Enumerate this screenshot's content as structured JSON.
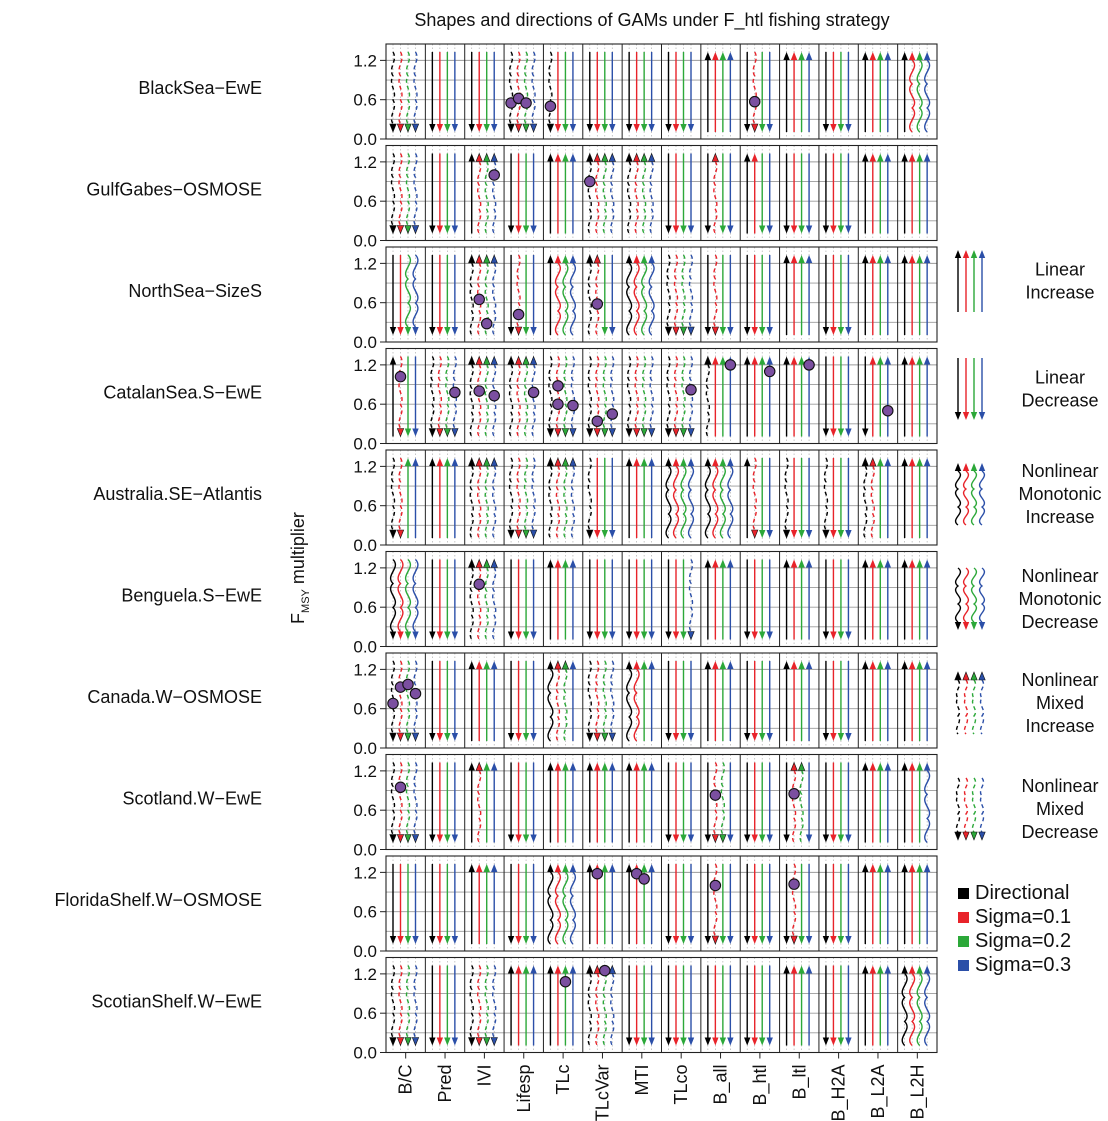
{
  "chart_data": {
    "type": "small-multiples-arrow-chart",
    "title": "Shapes and directions of GAMs under F_htl fishing strategy",
    "ylabel": {
      "main": "F",
      "sub": "MSY",
      "rest": " multiplier"
    },
    "y_ticks": [
      "1.2",
      "0.6",
      "0.0"
    ],
    "ylim": [
      0,
      1.45
    ],
    "indicators": [
      "B/C",
      "Pred",
      "IVI",
      "Lifesp",
      "TLc",
      "TLcVar",
      "MTI",
      "TLco",
      "B_all",
      "B_htl",
      "B_ltl",
      "B_H2A",
      "B_L2A",
      "B_L2H"
    ],
    "series": [
      {
        "name": "Directional",
        "color": "#000000"
      },
      {
        "name": "Sigma=0.1",
        "color": "#e8232a"
      },
      {
        "name": "Sigma=0.2",
        "color": "#2ca839"
      },
      {
        "name": "Sigma=0.3",
        "color": "#2b4fa8"
      }
    ],
    "shape_legend": [
      {
        "code": "LI",
        "lines": [
          "Linear",
          "Increase"
        ]
      },
      {
        "code": "LD",
        "lines": [
          "Linear",
          "Decrease"
        ]
      },
      {
        "code": "NMI",
        "lines": [
          "Nonlinear",
          "Monotonic",
          "Increase"
        ]
      },
      {
        "code": "NMD",
        "lines": [
          "Nonlinear",
          "Monotonic",
          "Decrease"
        ]
      },
      {
        "code": "NXI",
        "lines": [
          "Nonlinear",
          "Mixed",
          "Increase"
        ]
      },
      {
        "code": "NXD",
        "lines": [
          "Nonlinear",
          "Mixed",
          "Decrease"
        ]
      }
    ],
    "ecosystems": [
      {
        "name": "BlackSea−EwE",
        "shapes": [
          [
            "NXD",
            "NXD",
            "NXD",
            "NXD"
          ],
          [
            "LD",
            "LD",
            "LD",
            "LD"
          ],
          [
            "LD",
            "LD",
            "LD",
            "LD"
          ],
          [
            "NXD",
            "NXD",
            "NXD",
            "NXD"
          ],
          [
            "NXD",
            "LD",
            "LD",
            "LD"
          ],
          [
            "LD",
            "LD",
            "LD",
            "LD"
          ],
          [
            "LD",
            "LD",
            "LD",
            "LD"
          ],
          [
            "LD",
            "LD",
            "LD",
            "LD"
          ],
          [
            "LI",
            "LI",
            "LI",
            "LI"
          ],
          [
            "LD",
            "NXD",
            "LD",
            "LD"
          ],
          [
            "LI",
            "LI",
            "LI",
            "LI"
          ],
          [
            "LD",
            "LD",
            "LD",
            "LD"
          ],
          [
            "LI",
            "LI",
            "LI",
            "LI"
          ],
          [
            "LI",
            "NMI",
            "NMI",
            "NMI"
          ]
        ],
        "points": [
          [
            3,
            0,
            0.55
          ],
          [
            3,
            1,
            0.62
          ],
          [
            3,
            2,
            0.55
          ],
          [
            4,
            0,
            0.5
          ],
          [
            9,
            1,
            0.57
          ]
        ]
      },
      {
        "name": "GulfGabes−OSMOSE",
        "shapes": [
          [
            "NXD",
            "NXD",
            "NXD",
            "NXD"
          ],
          [
            "LD",
            "LD",
            "LD",
            "LD"
          ],
          [
            "LI",
            "NXI",
            "NXI",
            "NXI"
          ],
          [
            "LD",
            "LD",
            "LD",
            "LD"
          ],
          [
            "LI",
            "LI",
            "LI",
            "LI"
          ],
          [
            "NXI",
            "NXI",
            "NXI",
            "NXI"
          ],
          [
            "NXI",
            "NXI",
            "NXI",
            "NXI"
          ],
          [
            "LD",
            "LD",
            "LD",
            "LD"
          ],
          [
            "LD",
            "NXI",
            "LD",
            "LD"
          ],
          [
            "LI",
            "LI",
            "LD",
            "LD"
          ],
          [
            "LD",
            "LD",
            "LD",
            "LD"
          ],
          [
            "LD",
            "LD",
            "LD",
            "LD"
          ],
          [
            "LI",
            "LI",
            "LI",
            "LI"
          ],
          [
            "LI",
            "LI",
            "LI",
            "LI"
          ]
        ],
        "points": [
          [
            2,
            3,
            1.0
          ],
          [
            5,
            0,
            0.9
          ]
        ]
      },
      {
        "name": "NorthSea−SizeS",
        "shapes": [
          [
            "LD",
            "LD",
            "NMD",
            "NMD"
          ],
          [
            "LD",
            "LD",
            "LD",
            "LD"
          ],
          [
            "NXI",
            "NXI",
            "NXI",
            "NXI"
          ],
          [
            "LD",
            "NXD",
            "LD",
            "LD"
          ],
          [
            "LI",
            "NMI",
            "NMI",
            "NMI"
          ],
          [
            "NXI",
            "NXI",
            "LD",
            "LD"
          ],
          [
            "NMI",
            "NMI",
            "NMI",
            "NMI"
          ],
          [
            "NXD",
            "NXD",
            "NXD",
            "NXD"
          ],
          [
            "LD",
            "NXD",
            "LD",
            "LD"
          ],
          [
            "LD",
            "LD",
            "LD",
            "LD"
          ],
          [
            "LI",
            "LI",
            "LI",
            "LI"
          ],
          [
            "LD",
            "LD",
            "LD",
            "LD"
          ],
          [
            "LI",
            "LI",
            "LI",
            "LI"
          ],
          [
            "LI",
            "LI",
            "LI",
            "LI"
          ]
        ],
        "points": [
          [
            2,
            1,
            0.65
          ],
          [
            2,
            2,
            0.28
          ],
          [
            3,
            1,
            0.42
          ],
          [
            5,
            1,
            0.58
          ]
        ]
      },
      {
        "name": "CatalanSea.S−EwE",
        "shapes": [
          [
            "LI",
            "NXD",
            "LD",
            "LD"
          ],
          [
            "NXD",
            "NXD",
            "NXD",
            "NXD"
          ],
          [
            "NXI",
            "NXI",
            "NXI",
            "NXI"
          ],
          [
            "NXI",
            "NXI",
            "NXI",
            "NXI"
          ],
          [
            "NXD",
            "NXD",
            "NXD",
            "NXD"
          ],
          [
            "NXD",
            "NXD",
            "NXD",
            "NXD"
          ],
          [
            "NXD",
            "NXD",
            "NXD",
            "NXD"
          ],
          [
            "NXD",
            "NXD",
            "NXD",
            "NXD"
          ],
          [
            "NXI",
            "LI",
            "LI",
            "LI"
          ],
          [
            "LI",
            "LI",
            "LI",
            "LI"
          ],
          [
            "LI",
            "LI",
            "LI",
            "LI"
          ],
          [
            "LD",
            "LD",
            "LD",
            "LD"
          ],
          [
            "LD",
            "LI",
            "LI",
            "LI"
          ],
          [
            "LI",
            "LI",
            "LI",
            "LI"
          ]
        ],
        "points": [
          [
            0,
            1,
            1.02
          ],
          [
            1,
            3,
            0.78
          ],
          [
            2,
            1,
            0.8
          ],
          [
            2,
            3,
            0.73
          ],
          [
            3,
            3,
            0.78
          ],
          [
            4,
            1,
            0.88
          ],
          [
            4,
            1,
            0.6
          ],
          [
            4,
            3,
            0.58
          ],
          [
            5,
            1,
            0.34
          ],
          [
            5,
            3,
            0.45
          ],
          [
            7,
            3,
            0.82
          ],
          [
            8,
            3,
            1.2
          ],
          [
            9,
            3,
            1.1
          ],
          [
            10,
            3,
            1.2
          ],
          [
            12,
            3,
            0.5
          ]
        ]
      },
      {
        "name": "Australia.SE−Atlantis",
        "shapes": [
          [
            "NXD",
            "NXD",
            "LI",
            "LI"
          ],
          [
            "LI",
            "LI",
            "LI",
            "LI"
          ],
          [
            "NXI",
            "NXI",
            "NXI",
            "NXI"
          ],
          [
            "NXD",
            "NXD",
            "NXD",
            "NXD"
          ],
          [
            "NXI",
            "NXI",
            "NXI",
            "NXI"
          ],
          [
            "NXD",
            "LD",
            "LD",
            "LD"
          ],
          [
            "LI",
            "LI",
            "LI",
            "LI"
          ],
          [
            "NMI",
            "NMI",
            "NMI",
            "NMI"
          ],
          [
            "NMI",
            "NMI",
            "NMI",
            "NMI"
          ],
          [
            "LI",
            "NXD",
            "LD",
            "LD"
          ],
          [
            "NXD",
            "LD",
            "LD",
            "LD"
          ],
          [
            "NXD",
            "LD",
            "LD",
            "LD"
          ],
          [
            "NXI",
            "NXI",
            "LI",
            "LI"
          ],
          [
            "LI",
            "LI",
            "LI",
            "LI"
          ]
        ],
        "points": []
      },
      {
        "name": "Benguela.S−EwE",
        "shapes": [
          [
            "NMD",
            "NMD",
            "NMD",
            "NMD"
          ],
          [
            "LD",
            "LD",
            "LD",
            "LD"
          ],
          [
            "NXI",
            "NXI",
            "NXI",
            "NXI"
          ],
          [
            "LD",
            "LD",
            "LD",
            "LD"
          ],
          [
            "LI",
            "LI",
            "LI",
            "LI"
          ],
          [
            "LD",
            "LD",
            "LD",
            "LD"
          ],
          [
            "LD",
            "LD",
            "LD",
            "LD"
          ],
          [
            "LD",
            "LD",
            "LD",
            "NXD"
          ],
          [
            "LI",
            "LI",
            "LI",
            "LI"
          ],
          [
            "LD",
            "LD",
            "LD",
            "LD"
          ],
          [
            "LI",
            "LI",
            "LI",
            "LI"
          ],
          [
            "LD",
            "LD",
            "LD",
            "LD"
          ],
          [
            "LI",
            "LI",
            "LI",
            "LI"
          ],
          [
            "LI",
            "LI",
            "LI",
            "LI"
          ]
        ],
        "points": [
          [
            2,
            1,
            0.95
          ]
        ]
      },
      {
        "name": "Canada.W−OSMOSE",
        "shapes": [
          [
            "NXD",
            "NXD",
            "NXD",
            "NXD"
          ],
          [
            "LD",
            "LD",
            "LD",
            "LD"
          ],
          [
            "LI",
            "LI",
            "LI",
            "LI"
          ],
          [
            "LD",
            "LD",
            "LD",
            "LD"
          ],
          [
            "NMI",
            "NXI",
            "NXI",
            "LI"
          ],
          [
            "NXD",
            "NXD",
            "NXD",
            "NXD"
          ],
          [
            "NMI",
            "NMI",
            "LI",
            "LI"
          ],
          [
            "LD",
            "LD",
            "LD",
            "LD"
          ],
          [
            "LI",
            "LI",
            "LI",
            "LI"
          ],
          [
            "LD",
            "LD",
            "LD",
            "LD"
          ],
          [
            "LI",
            "LI",
            "LI",
            "LI"
          ],
          [
            "LD",
            "LD",
            "LD",
            "LD"
          ],
          [
            "LI",
            "LI",
            "LI",
            "LI"
          ],
          [
            "LI",
            "LI",
            "LI",
            "LI"
          ]
        ],
        "points": [
          [
            0,
            0,
            0.68
          ],
          [
            0,
            1,
            0.93
          ],
          [
            0,
            2,
            0.97
          ],
          [
            0,
            3,
            0.83
          ]
        ]
      },
      {
        "name": "Scotland.W−EwE",
        "shapes": [
          [
            "NXD",
            "NXD",
            "NXD",
            "NXD"
          ],
          [
            "LD",
            "LD",
            "LD",
            "LD"
          ],
          [
            "LI",
            "NXI",
            "LI",
            "LI"
          ],
          [
            "LD",
            "LD",
            "LD",
            "LD"
          ],
          [
            "LI",
            "LI",
            "LI",
            "LI"
          ],
          [
            "LI",
            "LI",
            "LI",
            "LI"
          ],
          [
            "LI",
            "LI",
            "LI",
            "LI"
          ],
          [
            "LD",
            "LD",
            "LD",
            "LD"
          ],
          [
            "LD",
            "NXD",
            "NXD",
            "LD"
          ],
          [
            "LD",
            "LD",
            "LD",
            "LD"
          ],
          [
            "LD",
            "NXI",
            "NXI",
            "LD"
          ],
          [
            "LD",
            "LD",
            "LD",
            "LD"
          ],
          [
            "LI",
            "LI",
            "LI",
            "LI"
          ],
          [
            "LI",
            "LI",
            "LI",
            "NMI"
          ]
        ],
        "points": [
          [
            0,
            1,
            0.95
          ],
          [
            8,
            1,
            0.83
          ],
          [
            10,
            1,
            0.85
          ]
        ]
      },
      {
        "name": "FloridaShelf.W−OSMOSE",
        "shapes": [
          [
            "LD",
            "LD",
            "LD",
            "LD"
          ],
          [
            "LD",
            "LD",
            "LD",
            "LD"
          ],
          [
            "LI",
            "LI",
            "LI",
            "LI"
          ],
          [
            "LD",
            "LD",
            "LD",
            "LD"
          ],
          [
            "NMI",
            "NMI",
            "NMI",
            "NMI"
          ],
          [
            "LI",
            "LI",
            "LI",
            "LI"
          ],
          [
            "LI",
            "LI",
            "LI",
            "LI"
          ],
          [
            "LD",
            "LD",
            "LD",
            "LD"
          ],
          [
            "LD",
            "NXD",
            "LD",
            "LD"
          ],
          [
            "LD",
            "LD",
            "LD",
            "LD"
          ],
          [
            "LD",
            "NXD",
            "LD",
            "LD"
          ],
          [
            "LD",
            "LD",
            "LD",
            "LD"
          ],
          [
            "LI",
            "LI",
            "LI",
            "LI"
          ],
          [
            "LI",
            "LI",
            "LI",
            "LI"
          ]
        ],
        "points": [
          [
            5,
            1,
            1.18
          ],
          [
            6,
            1,
            1.18
          ],
          [
            6,
            2,
            1.1
          ],
          [
            8,
            1,
            1.0
          ],
          [
            10,
            1,
            1.02
          ]
        ]
      },
      {
        "name": "ScotianShelf.W−EwE",
        "shapes": [
          [
            "NXD",
            "NXD",
            "NXD",
            "NXD"
          ],
          [
            "LD",
            "LD",
            "LD",
            "LD"
          ],
          [
            "NXD",
            "NXD",
            "NXD",
            "NXD"
          ],
          [
            "LI",
            "LI",
            "LI",
            "LI"
          ],
          [
            "LI",
            "LI",
            "LI",
            "LI"
          ],
          [
            "NXI",
            "NXI",
            "NXI",
            "NXI"
          ],
          [
            "LD",
            "LD",
            "LD",
            "LD"
          ],
          [
            "LD",
            "LD",
            "LD",
            "LD"
          ],
          [
            "LD",
            "LD",
            "LD",
            "LD"
          ],
          [
            "LD",
            "LD",
            "LD",
            "LD"
          ],
          [
            "LI",
            "LI",
            "LI",
            "LI"
          ],
          [
            "LD",
            "LD",
            "LD",
            "LD"
          ],
          [
            "LI",
            "LI",
            "LI",
            "LI"
          ],
          [
            "NMI",
            "NMI",
            "NMI",
            "NMI"
          ]
        ],
        "points": [
          [
            4,
            2,
            1.08
          ],
          [
            5,
            2,
            1.25
          ]
        ]
      }
    ]
  }
}
